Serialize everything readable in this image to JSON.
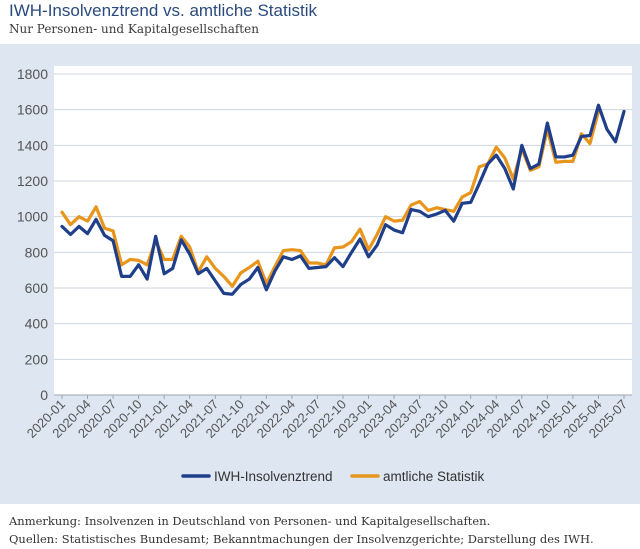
{
  "title": "IWH-Insolvenztrend vs. amtliche Statistik",
  "subtitle": "Nur Personen- und Kapitalgesellschaften",
  "note": "Anmerkung: Insolvenzen in Deutschland von Personen- und Kapitalgesellschaften.",
  "source": "Quellen: Statistisches Bundesamt; Bekanntmachungen der Insolvenzgerichte; Darstellung des IWH.",
  "chart_data": {
    "type": "line",
    "title": "IWH-Insolvenztrend vs. amtliche Statistik",
    "xlabel": "",
    "ylabel": "",
    "ylim": [
      0,
      1800
    ],
    "yticks": [
      0,
      200,
      400,
      600,
      800,
      1000,
      1200,
      1400,
      1600,
      1800
    ],
    "grid": true,
    "legend": "bottom",
    "x": [
      "2020-01",
      "2020-02",
      "2020-03",
      "2020-04",
      "2020-05",
      "2020-06",
      "2020-07",
      "2020-08",
      "2020-09",
      "2020-10",
      "2020-11",
      "2020-12",
      "2021-01",
      "2021-02",
      "2021-03",
      "2021-04",
      "2021-05",
      "2021-06",
      "2021-07",
      "2021-08",
      "2021-09",
      "2021-10",
      "2021-11",
      "2021-12",
      "2022-01",
      "2022-02",
      "2022-03",
      "2022-04",
      "2022-05",
      "2022-06",
      "2022-07",
      "2022-08",
      "2022-09",
      "2022-10",
      "2022-11",
      "2022-12",
      "2023-01",
      "2023-02",
      "2023-03",
      "2023-04",
      "2023-05",
      "2023-06",
      "2023-07",
      "2023-08",
      "2023-09",
      "2023-10",
      "2023-11",
      "2023-12",
      "2024-01",
      "2024-02",
      "2024-03",
      "2024-04",
      "2024-05",
      "2024-06",
      "2024-07",
      "2024-08",
      "2024-09",
      "2024-10",
      "2024-11",
      "2024-12",
      "2025-01",
      "2025-02",
      "2025-03",
      "2025-04",
      "2025-05",
      "2025-06",
      "2025-07"
    ],
    "xtick_labels": [
      "2020-01",
      "2020-04",
      "2020-07",
      "2020-10",
      "2021-01",
      "2021-04",
      "2021-07",
      "2021-10",
      "2022-01",
      "2022-04",
      "2022-07",
      "2022-10",
      "2023-01",
      "2023-04",
      "2023-07",
      "2023-10",
      "2024-01",
      "2024-04",
      "2024-07",
      "2024-10",
      "2025-01",
      "2025-04",
      "2025-07"
    ],
    "series": [
      {
        "name": "IWH-Insolvenztrend",
        "color": "#1f3f8a",
        "values": [
          945,
          900,
          945,
          905,
          985,
          895,
          865,
          665,
          665,
          730,
          650,
          890,
          680,
          710,
          870,
          790,
          680,
          710,
          640,
          570,
          565,
          620,
          650,
          715,
          590,
          695,
          775,
          760,
          780,
          710,
          715,
          720,
          770,
          720,
          800,
          875,
          775,
          840,
          955,
          925,
          910,
          1040,
          1030,
          1000,
          1015,
          1035,
          975,
          1075,
          1080,
          1185,
          1295,
          1345,
          1270,
          1155,
          1400,
          1270,
          1295,
          1525,
          1335,
          1335,
          1345,
          1450,
          1455,
          1625,
          1490,
          1420,
          1590
        ]
      },
      {
        "name": "amtliche Statistik",
        "color": "#e8951c",
        "values": [
          1025,
          955,
          1000,
          975,
          1055,
          935,
          920,
          730,
          760,
          755,
          730,
          865,
          760,
          760,
          890,
          830,
          690,
          775,
          710,
          665,
          610,
          685,
          715,
          750,
          625,
          720,
          810,
          815,
          810,
          740,
          740,
          730,
          825,
          830,
          860,
          930,
          815,
          900,
          1000,
          975,
          980,
          1065,
          1085,
          1035,
          1050,
          1040,
          1030,
          1110,
          1135,
          1280,
          1295,
          1390,
          1330,
          1210,
          1380,
          1260,
          1280,
          1490,
          1305,
          1310,
          1310,
          1465,
          1410,
          1590,
          null,
          null,
          null
        ]
      }
    ]
  }
}
